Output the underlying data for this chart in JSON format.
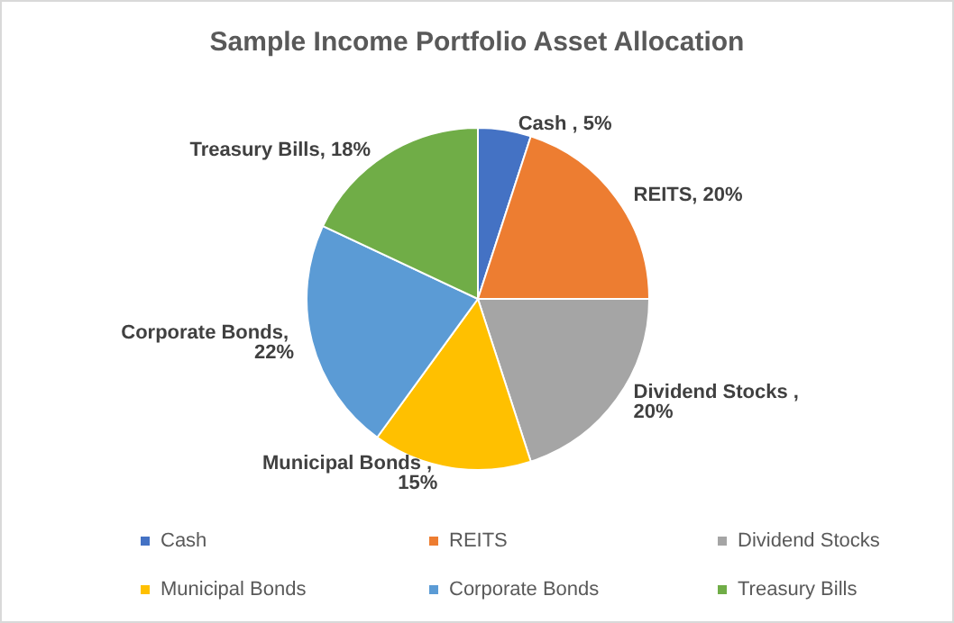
{
  "chart_data": {
    "type": "pie",
    "title": "Sample Income Portfolio Asset Allocation",
    "categories": [
      "Cash",
      "REITS",
      "Dividend Stocks",
      "Municipal Bonds",
      "Corporate Bonds",
      "Treasury Bills"
    ],
    "values": [
      5,
      20,
      20,
      15,
      22,
      18
    ],
    "colors": [
      "#4472c4",
      "#ed7d31",
      "#a5a5a5",
      "#ffc000",
      "#5b9bd5",
      "#70ad47"
    ],
    "value_labels": [
      "Cash , 5%",
      "REITS, 20%",
      "Dividend Stocks , 20%",
      "Municipal Bonds , 15%",
      "Corporate Bonds, 22%",
      "Treasury Bills, 18%"
    ],
    "legend": "bottom"
  }
}
